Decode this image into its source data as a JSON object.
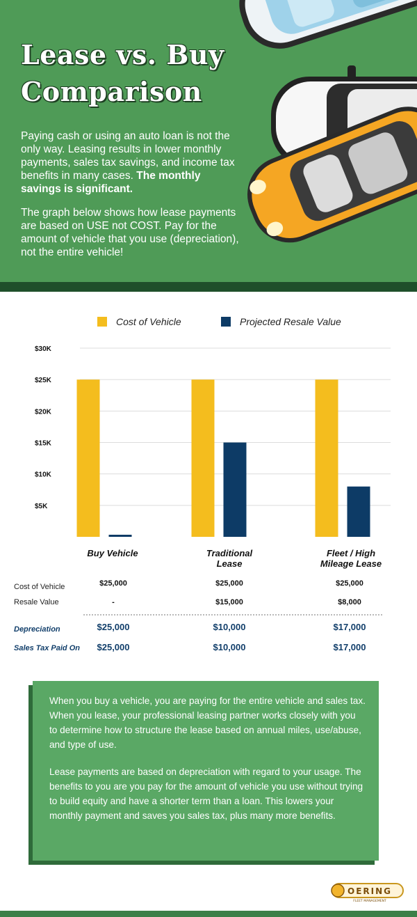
{
  "header": {
    "title": "Lease vs. Buy Comparison",
    "intro_text": "Paying cash or using an auto loan is not the only way. Leasing results in lower monthly payments, sales tax savings, and income tax benefits in many cases.",
    "intro_bold": "The monthly savings is significant.",
    "intro2": "The graph below shows how lease payments are based on USE not COST. Pay for the amount of vehicle that you use (depreciation), not the entire vehicle!"
  },
  "colors": {
    "hero_green": "#4f9b57",
    "cost_color": "#f4bd1e",
    "resale_color": "#0d3b66",
    "summary_blue": "#123f6b",
    "box_green": "#5aa865"
  },
  "chart_data": {
    "type": "bar",
    "categories": [
      "Buy Vehicle",
      "Traditional Lease",
      "Fleet / High Mileage Lease"
    ],
    "series": [
      {
        "name": "Cost of Vehicle",
        "values": [
          25000,
          25000,
          25000
        ]
      },
      {
        "name": "Projected Resale Value",
        "values": [
          0,
          15000,
          8000
        ]
      }
    ],
    "y_ticks": [
      "$5K",
      "$10K",
      "$15K",
      "$20K",
      "$25K",
      "$30K"
    ],
    "y_tick_values": [
      5000,
      10000,
      15000,
      20000,
      25000,
      30000
    ],
    "ylim": [
      0,
      30000
    ],
    "legend_position": "top",
    "grid": true
  },
  "table": {
    "row_labels": [
      "Cost of Vehicle",
      "Resale Value"
    ],
    "rows": [
      [
        "$25,000",
        "$25,000",
        "$25,000"
      ],
      [
        "-",
        "$15,000",
        "$8,000"
      ]
    ],
    "summary_labels": [
      "Depreciation",
      "Sales Tax Paid On"
    ],
    "summary": [
      [
        "$25,000",
        "$10,000",
        "$17,000"
      ],
      [
        "$25,000",
        "$10,000",
        "$17,000"
      ]
    ]
  },
  "info": {
    "p1": "When you buy a vehicle, you are paying for the entire vehicle and sales tax. When you lease, your professional leasing partner works closely with you to determine how to structure the lease based on annual miles, use/abuse, and type of use.",
    "p2": "Lease payments are based on depreciation with regard to your usage.  The benefits to you are you pay for the amount of vehicle you use without trying to build equity and have a shorter term than a loan. This lowers your monthly payment and saves you sales tax, plus many more benefits."
  },
  "logo": {
    "name": "OERING",
    "tagline": "FLEET MANAGEMENT"
  }
}
